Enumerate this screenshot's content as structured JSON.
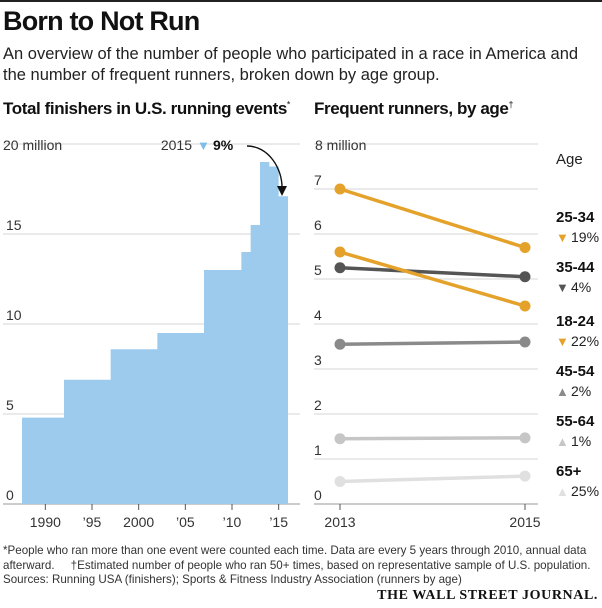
{
  "header": {
    "title": "Born to Not Run",
    "subtitle": "An overview of the number of people who participated in a race in America and the number of frequent runners, broken down by age group."
  },
  "colors": {
    "bar": "#9dcbee",
    "orange": "#e4a22a",
    "dark": "#555555",
    "gray": "#8a8a8a",
    "light": "#c6c6c6",
    "lighter": "#e0e0e0"
  },
  "chart_data": [
    {
      "type": "area",
      "title": "Total finishers in U.S. running events",
      "title_mark": "*",
      "ylabel": "20 million",
      "ylim": [
        0,
        20
      ],
      "yticks": [
        "0",
        "5",
        "10",
        "15"
      ],
      "xticks": [
        {
          "year": 1990,
          "label": "1990"
        },
        {
          "year": 1995,
          "label": "’95"
        },
        {
          "year": 2000,
          "label": "2000"
        },
        {
          "year": 2005,
          "label": "’05"
        },
        {
          "year": 2010,
          "label": "’10"
        },
        {
          "year": 2015,
          "label": "’15"
        }
      ],
      "xlim": [
        1987.5,
        2016
      ],
      "steps": [
        {
          "start": 1987.5,
          "end": 1992,
          "value": 4.8
        },
        {
          "start": 1992,
          "end": 1997,
          "value": 6.9
        },
        {
          "start": 1997,
          "end": 2002,
          "value": 8.6
        },
        {
          "start": 2002,
          "end": 2007,
          "value": 9.5
        },
        {
          "start": 2007,
          "end": 2011,
          "value": 13.0
        },
        {
          "start": 2011,
          "end": 2012,
          "value": 14.0
        },
        {
          "start": 2012,
          "end": 2013,
          "value": 15.5
        },
        {
          "start": 2013,
          "end": 2014,
          "value": 19.0
        },
        {
          "start": 2014,
          "end": 2015,
          "value": 18.75
        },
        {
          "start": 2015,
          "end": 2016,
          "value": 17.1
        }
      ],
      "annotation": {
        "year_label": "2015",
        "arrow": "▼",
        "change": "9%"
      }
    },
    {
      "type": "line",
      "title": "Frequent runners, by age",
      "title_mark": "†",
      "ylabel": "8 million",
      "ylim": [
        0,
        8
      ],
      "yticks": [
        "0",
        "1",
        "2",
        "3",
        "4",
        "5",
        "6",
        "7"
      ],
      "x": [
        "2013",
        "2015"
      ],
      "legend_title": "Age",
      "series": [
        {
          "name": "25-34",
          "values": [
            7.0,
            5.7
          ],
          "color": "#e4a22a",
          "direction": "▼",
          "change": "19%"
        },
        {
          "name": "35-44",
          "values": [
            5.25,
            5.05
          ],
          "color": "#555555",
          "direction": "▼",
          "change": "4%"
        },
        {
          "name": "18-24",
          "values": [
            5.6,
            4.4
          ],
          "color": "#e4a22a",
          "direction": "▼",
          "change": "22%"
        },
        {
          "name": "45-54",
          "values": [
            3.55,
            3.6
          ],
          "color": "#8a8a8a",
          "direction": "▲",
          "change": "2%"
        },
        {
          "name": "55-64",
          "values": [
            1.45,
            1.47
          ],
          "color": "#c6c6c6",
          "direction": "▲",
          "change": "1%"
        },
        {
          "name": "65+",
          "values": [
            0.5,
            0.62
          ],
          "color": "#e0e0e0",
          "direction": "▲",
          "change": "25%"
        }
      ]
    }
  ],
  "footer": {
    "note1_mark": "*",
    "note1": "People who ran more than one event were counted each time. Data are every 5 years through 2010, annual data",
    "note1_cont": "afterward.",
    "note2_mark": "†",
    "note2": "Estimated number of people who ran 50+ times, based on representative sample of U.S. population.",
    "sources": "Sources: Running USA (finishers); Sports & Fitness Industry Association (runners by age)",
    "credit": "THE WALL STREET JOURNAL."
  }
}
